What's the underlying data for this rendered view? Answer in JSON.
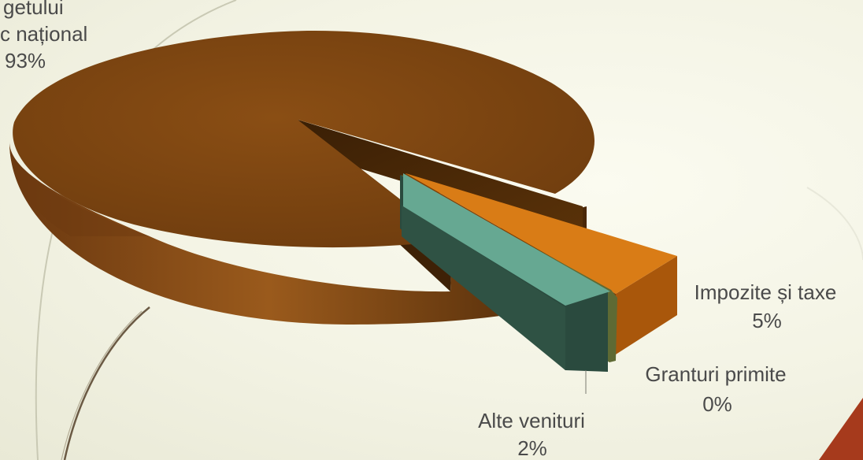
{
  "chart_data": {
    "type": "pie",
    "style": "3d-exploded",
    "title": "",
    "slices": [
      {
        "name": "Transferuri de la bugetul public național",
        "visible_label_lines": [
          "getului",
          "c național"
        ],
        "value_label": "93%",
        "value": 93,
        "color": "#7e4612"
      },
      {
        "name": "Impozite și taxe",
        "visible_label_lines": [
          "Impozite și taxe"
        ],
        "value_label": "5%",
        "value": 5,
        "color": "#d97c16"
      },
      {
        "name": "Granturi primite",
        "visible_label_lines": [
          "Granturi primite"
        ],
        "value_label": "0%",
        "value": 0,
        "color": "#6f7a3c"
      },
      {
        "name": "Alte venituri",
        "visible_label_lines": [
          "Alte venituri"
        ],
        "value_label": "2%",
        "value": 2,
        "color": "#66a892"
      }
    ]
  }
}
